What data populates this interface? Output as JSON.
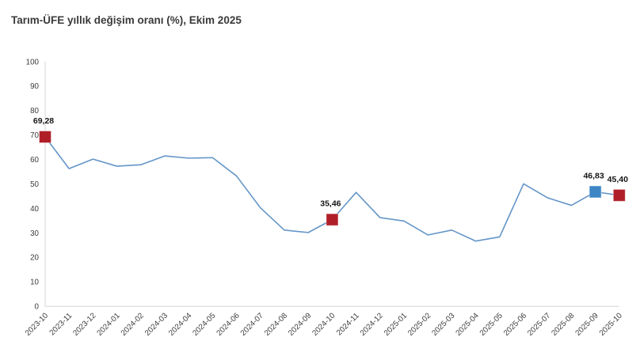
{
  "title": "Tarım-ÜFE yıllık değişim oranı (%), Ekim 2025",
  "colors": {
    "line": "#6496c8",
    "marker_red": "#b01f28",
    "marker_blue": "#3e86c6",
    "axis": "#d6d6d6",
    "tick_text": "#3c3c3c",
    "label_text": "#141414",
    "title_text": "#3a3a3a"
  },
  "chart_data": {
    "type": "line",
    "title": "Tarım-ÜFE yıllık değişim oranı (%), Ekim 2025",
    "x": [
      "2023-10",
      "2023-11",
      "2023-12",
      "2024-01",
      "2024-02",
      "2024-03",
      "2024-04",
      "2024-05",
      "2024-06",
      "2024-07",
      "2024-08",
      "2024-09",
      "2024-10",
      "2024-11",
      "2024-12",
      "2025-01",
      "2025-02",
      "2025-03",
      "2025-04",
      "2025-05",
      "2025-06",
      "2025-07",
      "2025-08",
      "2025-09",
      "2025-10"
    ],
    "series": [
      {
        "name": "Tarım-ÜFE yıllık değişim oranı (%)",
        "values": [
          69.28,
          56.3,
          60.2,
          57.3,
          57.9,
          61.5,
          60.6,
          60.8,
          53.3,
          40.3,
          31.2,
          30.2,
          35.46,
          46.6,
          36.3,
          34.9,
          29.2,
          31.2,
          26.7,
          28.4,
          50.1,
          44.4,
          41.3,
          46.83,
          45.4
        ]
      }
    ],
    "annotated_points": [
      {
        "x": "2023-10",
        "index": 0,
        "value": 69.28,
        "label": "69,28",
        "marker_color": "#b01f28"
      },
      {
        "x": "2024-10",
        "index": 12,
        "value": 35.46,
        "label": "35,46",
        "marker_color": "#b01f28"
      },
      {
        "x": "2025-09",
        "index": 23,
        "value": 46.83,
        "label": "46,83",
        "marker_color": "#3e86c6"
      },
      {
        "x": "2025-10",
        "index": 24,
        "value": 45.4,
        "label": "45,40",
        "marker_color": "#b01f28"
      }
    ],
    "xlabel": "",
    "ylabel": "",
    "ylim": [
      0,
      100
    ],
    "ytick_step": 10,
    "x_tick_rotation": -45,
    "grid": false,
    "legend": false
  }
}
